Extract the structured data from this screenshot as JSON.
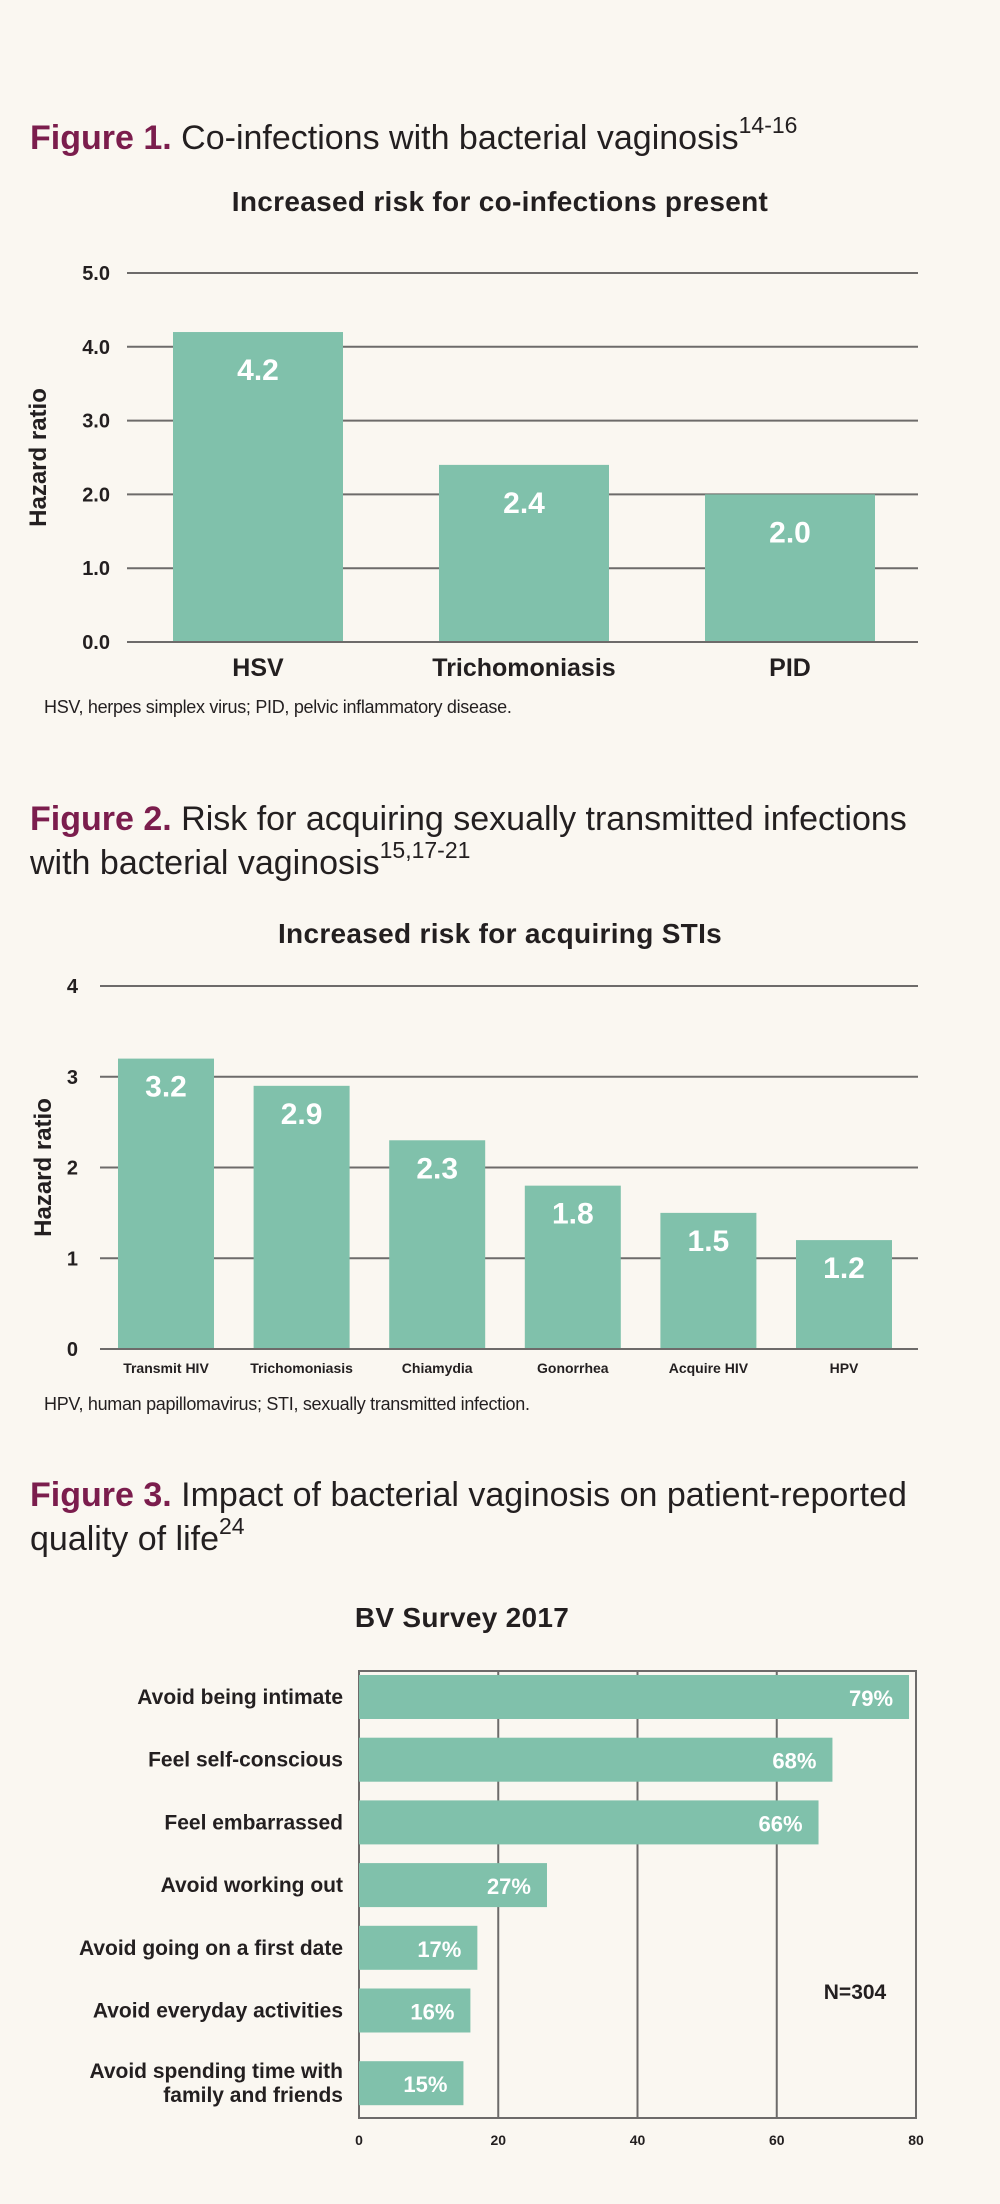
{
  "figure1": {
    "label": "Figure 1.",
    "title": "Co-infections with bacterial vaginosis",
    "ref": "14-16",
    "footnote": "HSV, herpes simplex virus; PID, pelvic inflammatory disease."
  },
  "figure2": {
    "label": "Figure 2.",
    "title": "Risk for acquiring sexually transmitted infections with bacterial vaginosis",
    "ref": "15,17-21",
    "footnote": "HPV, human papillomavirus; STI, sexually transmitted infection."
  },
  "figure3": {
    "label": "Figure 3.",
    "title": "Impact of bacterial vaginosis on patient-reported quality of life",
    "ref": "24"
  },
  "colors": {
    "bar": "#80c1ab",
    "heading_label": "#7b1d4d",
    "text": "#231f20",
    "grid": "#6d6b6a",
    "background": "#faf7f1"
  },
  "chart_data": [
    {
      "type": "bar",
      "title": "Increased risk for co-infections present",
      "ylabel": "Hazard ratio",
      "xlabel": "",
      "categories": [
        "HSV",
        "Trichomoniasis",
        "PID"
      ],
      "values": [
        4.2,
        2.4,
        2.0
      ],
      "data_labels": [
        "4.2",
        "2.4",
        "2.0"
      ],
      "ylim": [
        0,
        5
      ],
      "yticks": [
        0,
        1,
        2,
        3,
        4,
        5
      ],
      "ytick_labels": [
        "0.0",
        "1.0",
        "2.0",
        "3.0",
        "4.0",
        "5.0"
      ],
      "grid": true
    },
    {
      "type": "bar",
      "title": "Increased risk for acquiring STIs",
      "ylabel": "Hazard ratio",
      "xlabel": "",
      "categories": [
        "Transmit HIV",
        "Trichomoniasis",
        "Chiamydia",
        "Gonorrhea",
        "Acquire HIV",
        "HPV"
      ],
      "values": [
        3.2,
        2.9,
        2.3,
        1.8,
        1.5,
        1.2
      ],
      "data_labels": [
        "3.2",
        "2.9",
        "2.3",
        "1.8",
        "1.5",
        "1.2"
      ],
      "ylim": [
        0,
        4
      ],
      "yticks": [
        0,
        1,
        2,
        3,
        4
      ],
      "ytick_labels": [
        "0",
        "1",
        "2",
        "3",
        "4"
      ],
      "grid": true
    },
    {
      "type": "bar",
      "orientation": "horizontal",
      "title": "BV Survey 2017",
      "categories": [
        "Avoid being intimate",
        "Feel self-conscious",
        "Feel embarrassed",
        "Avoid working out",
        "Avoid going on a first date",
        "Avoid everyday activities",
        "Avoid spending time with family and friends"
      ],
      "category_lines": [
        [
          "Avoid being intimate"
        ],
        [
          "Feel self-conscious"
        ],
        [
          "Feel embarrassed"
        ],
        [
          "Avoid working out"
        ],
        [
          "Avoid going on a first date"
        ],
        [
          "Avoid everyday activities"
        ],
        [
          "Avoid spending time with",
          "family and friends"
        ]
      ],
      "values": [
        79,
        68,
        66,
        27,
        17,
        16,
        15
      ],
      "data_labels": [
        "79%",
        "68%",
        "66%",
        "27%",
        "17%",
        "16%",
        "15%"
      ],
      "xlim": [
        0,
        80
      ],
      "xticks": [
        0,
        20,
        40,
        60,
        80
      ],
      "xtick_labels": [
        "0",
        "20",
        "40",
        "60",
        "80"
      ],
      "annotation": "N=304",
      "grid": true
    }
  ]
}
